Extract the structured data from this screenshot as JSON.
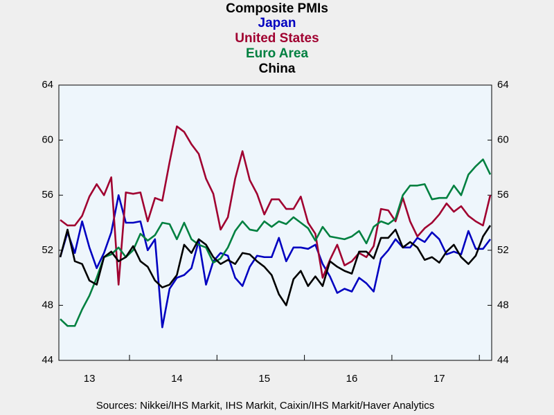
{
  "chart_data": {
    "type": "line",
    "title": "Composite PMIs",
    "source": "Sources:  Nikkei/IHS Markit, IHS Markit, Caixin/IHS Markit/Haver Analytics",
    "categories": [
      null,
      null,
      null,
      null,
      "13",
      null,
      null,
      null,
      null,
      null,
      null,
      null,
      null,
      null,
      null,
      null,
      "14",
      null,
      null,
      null,
      null,
      null,
      null,
      null,
      null,
      null,
      null,
      null,
      "15",
      null,
      null,
      null,
      null,
      null,
      null,
      null,
      null,
      null,
      null,
      null,
      "16",
      null,
      null,
      null,
      null,
      null,
      null,
      null,
      null,
      null,
      null,
      null,
      "17",
      null,
      null,
      null,
      null,
      null,
      null,
      null
    ],
    "series": [
      {
        "name": "Japan",
        "color": "#0000c0",
        "values": [
          51.5,
          53.3,
          51.8,
          54.1,
          52.2,
          50.7,
          51.8,
          53.3,
          56.0,
          54.0,
          54.0,
          54.1,
          52.0,
          52.8,
          46.4,
          49.2,
          50.0,
          50.2,
          50.7,
          52.7,
          49.5,
          51.2,
          51.8,
          51.6,
          50.0,
          49.4,
          50.8,
          51.6,
          51.5,
          51.5,
          52.9,
          51.2,
          52.2,
          52.2,
          52.1,
          52.4,
          51.0,
          50.1,
          48.9,
          49.2,
          49.0,
          50.0,
          49.6,
          49.0,
          51.4,
          52.0,
          52.8,
          52.2,
          52.2,
          52.9,
          52.6,
          53.3,
          52.8,
          51.7,
          51.9,
          51.7,
          53.4,
          52.1,
          52.1,
          52.8
        ]
      },
      {
        "name": "United States",
        "color": "#a00030",
        "values": [
          54.2,
          53.8,
          53.8,
          54.5,
          55.9,
          56.8,
          56.0,
          57.3,
          49.5,
          56.2,
          56.1,
          56.2,
          54.1,
          55.8,
          55.6,
          58.4,
          61.0,
          60.6,
          59.7,
          59.0,
          57.2,
          56.1,
          53.5,
          54.4,
          57.2,
          59.2,
          57.1,
          56.1,
          54.6,
          55.7,
          55.7,
          55.0,
          55.0,
          55.9,
          54.0,
          53.2,
          50.0,
          51.3,
          52.4,
          50.9,
          51.2,
          51.8,
          51.5,
          52.3,
          55.0,
          54.9,
          54.1,
          55.8,
          54.1,
          53.0,
          53.6,
          54.0,
          54.6,
          55.4,
          54.8,
          55.2,
          54.5,
          54.1,
          53.8,
          56.0
        ]
      },
      {
        "name": "Euro Area",
        "color": "#008040",
        "values": [
          47.0,
          46.5,
          46.5,
          47.7,
          48.7,
          50.0,
          51.5,
          51.7,
          52.2,
          51.5,
          52.0,
          53.2,
          52.7,
          53.1,
          54.0,
          53.9,
          52.8,
          54.0,
          52.8,
          52.4,
          52.2,
          51.1,
          51.4,
          52.2,
          53.4,
          54.1,
          53.5,
          53.4,
          54.1,
          53.7,
          54.1,
          53.9,
          54.4,
          54.0,
          53.6,
          52.7,
          53.7,
          53.0,
          52.9,
          52.8,
          53.0,
          53.4,
          52.5,
          53.7,
          54.1,
          53.9,
          54.3,
          56.0,
          56.7,
          56.7,
          56.8,
          55.7,
          55.8,
          55.8,
          56.7,
          56.0,
          57.5,
          58.1,
          58.6,
          57.5
        ]
      },
      {
        "name": "China",
        "color": "#000000",
        "values": [
          51.5,
          53.5,
          51.2,
          51.0,
          49.8,
          49.5,
          51.5,
          51.9,
          51.2,
          51.5,
          52.3,
          51.2,
          50.8,
          49.8,
          49.3,
          49.5,
          50.2,
          52.4,
          51.8,
          52.8,
          52.4,
          51.5,
          51.0,
          51.3,
          51.0,
          51.8,
          51.7,
          51.2,
          50.8,
          50.2,
          48.8,
          48.0,
          49.9,
          50.5,
          49.4,
          50.1,
          49.4,
          51.2,
          50.8,
          50.5,
          50.3,
          51.9,
          51.9,
          51.4,
          52.9,
          52.9,
          53.5,
          52.2,
          52.6,
          52.2,
          51.3,
          51.5,
          51.1,
          51.9,
          52.4,
          51.5,
          51.0,
          51.6,
          53.0,
          53.8
        ]
      }
    ],
    "ylim": [
      44,
      64
    ],
    "yticks": [
      44,
      48,
      52,
      56,
      60,
      64
    ]
  }
}
